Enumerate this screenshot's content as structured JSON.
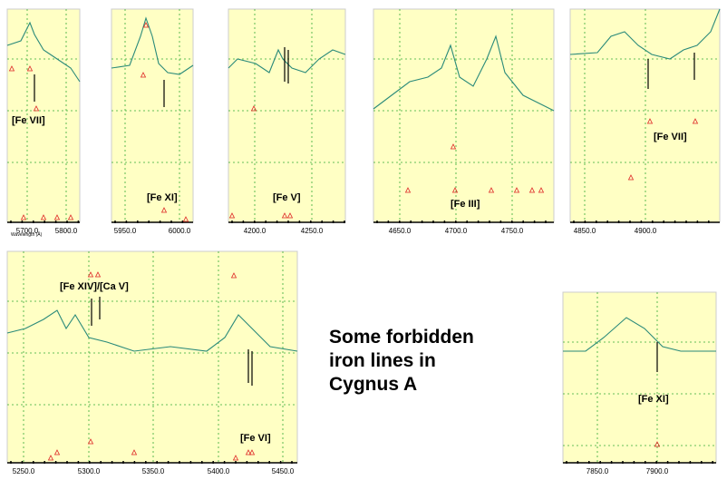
{
  "caption": [
    "Some forbidden",
    "iron lines in",
    "Cygnus A"
  ],
  "panels": [
    {
      "labels": [
        "[Fe VII]"
      ],
      "ticks": [
        "5700.0",
        "5800.0"
      ],
      "axis_title": "Wavelength (Å)"
    },
    {
      "labels": [
        "[Fe XI]"
      ],
      "ticks": [
        "5950.0",
        "6000.0"
      ]
    },
    {
      "labels": [
        "[Fe V]"
      ],
      "ticks": [
        "4200.0",
        "4250.0"
      ]
    },
    {
      "labels": [
        "[Fe III]"
      ],
      "ticks": [
        "4650.0",
        "4700.0",
        "4750.0"
      ]
    },
    {
      "labels": [
        "[Fe VII]"
      ],
      "ticks": [
        "4850.0",
        "4900.0"
      ]
    },
    {
      "labels": [
        "[Fe XIV]/[Ca V]",
        "[Fe VI]"
      ],
      "ticks": [
        "5250.0",
        "5300.0",
        "5350.0",
        "5400.0",
        "5450.0"
      ]
    },
    {
      "labels": [
        "[Fe XI]"
      ],
      "ticks": [
        "7850.0",
        "7900.0"
      ]
    }
  ]
}
